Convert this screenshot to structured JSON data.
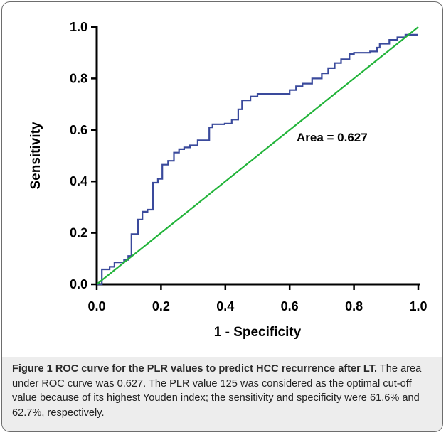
{
  "chart_data": {
    "type": "line",
    "xlabel": "1 - Specificity",
    "ylabel": "Sensitivity",
    "xlim": [
      0,
      1
    ],
    "ylim": [
      0,
      1
    ],
    "x_ticks": [
      "0.0",
      "0.2",
      "0.4",
      "0.6",
      "0.8",
      "1.0"
    ],
    "y_ticks": [
      "0.0",
      "0.2",
      "0.4",
      "0.6",
      "0.8",
      "1.0"
    ],
    "annotation": "Area = 0.627",
    "grid": false,
    "series": [
      {
        "color": "#3a4a9c",
        "points": [
          [
            0,
            0
          ],
          [
            0.016,
            0
          ],
          [
            0.016,
            0.058
          ],
          [
            0.04,
            0.058
          ],
          [
            0.04,
            0.068
          ],
          [
            0.055,
            0.068
          ],
          [
            0.055,
            0.085
          ],
          [
            0.085,
            0.085
          ],
          [
            0.085,
            0.095
          ],
          [
            0.098,
            0.095
          ],
          [
            0.098,
            0.11
          ],
          [
            0.108,
            0.11
          ],
          [
            0.108,
            0.195
          ],
          [
            0.128,
            0.195
          ],
          [
            0.128,
            0.252
          ],
          [
            0.142,
            0.252
          ],
          [
            0.142,
            0.282
          ],
          [
            0.158,
            0.282
          ],
          [
            0.158,
            0.29
          ],
          [
            0.175,
            0.29
          ],
          [
            0.175,
            0.395
          ],
          [
            0.19,
            0.395
          ],
          [
            0.19,
            0.41
          ],
          [
            0.204,
            0.41
          ],
          [
            0.204,
            0.465
          ],
          [
            0.222,
            0.465
          ],
          [
            0.222,
            0.48
          ],
          [
            0.24,
            0.48
          ],
          [
            0.24,
            0.512
          ],
          [
            0.256,
            0.512
          ],
          [
            0.256,
            0.525
          ],
          [
            0.272,
            0.525
          ],
          [
            0.272,
            0.532
          ],
          [
            0.29,
            0.532
          ],
          [
            0.29,
            0.54
          ],
          [
            0.314,
            0.54
          ],
          [
            0.314,
            0.56
          ],
          [
            0.35,
            0.56
          ],
          [
            0.35,
            0.61
          ],
          [
            0.36,
            0.61
          ],
          [
            0.36,
            0.622
          ],
          [
            0.398,
            0.622
          ],
          [
            0.398,
            0.625
          ],
          [
            0.42,
            0.625
          ],
          [
            0.42,
            0.64
          ],
          [
            0.44,
            0.64
          ],
          [
            0.44,
            0.68
          ],
          [
            0.452,
            0.68
          ],
          [
            0.452,
            0.715
          ],
          [
            0.478,
            0.715
          ],
          [
            0.478,
            0.73
          ],
          [
            0.5,
            0.73
          ],
          [
            0.5,
            0.74
          ],
          [
            0.6,
            0.74
          ],
          [
            0.6,
            0.755
          ],
          [
            0.62,
            0.755
          ],
          [
            0.62,
            0.77
          ],
          [
            0.64,
            0.77
          ],
          [
            0.64,
            0.78
          ],
          [
            0.67,
            0.78
          ],
          [
            0.67,
            0.8
          ],
          [
            0.7,
            0.8
          ],
          [
            0.7,
            0.82
          ],
          [
            0.72,
            0.82
          ],
          [
            0.72,
            0.84
          ],
          [
            0.74,
            0.84
          ],
          [
            0.74,
            0.86
          ],
          [
            0.76,
            0.86
          ],
          [
            0.76,
            0.875
          ],
          [
            0.786,
            0.875
          ],
          [
            0.786,
            0.895
          ],
          [
            0.8,
            0.895
          ],
          [
            0.8,
            0.9
          ],
          [
            0.85,
            0.9
          ],
          [
            0.85,
            0.905
          ],
          [
            0.872,
            0.905
          ],
          [
            0.872,
            0.92
          ],
          [
            0.88,
            0.92
          ],
          [
            0.88,
            0.935
          ],
          [
            0.91,
            0.935
          ],
          [
            0.91,
            0.95
          ],
          [
            0.935,
            0.95
          ],
          [
            0.935,
            0.96
          ],
          [
            0.96,
            0.96
          ],
          [
            0.96,
            0.97
          ],
          [
            1.0,
            0.97
          ]
        ]
      },
      {
        "color": "#22b43a",
        "points": [
          [
            0,
            0
          ],
          [
            1,
            1
          ]
        ]
      }
    ]
  },
  "caption": {
    "figure_label": "Figure 1 ROC curve for the PLR values to predict HCC recurrence after LT.",
    "text": " The area under ROC curve was 0.627. The PLR value 125 was considered as the optimal cut-off value because of its highest Youden index; the sensitivity and specificity were 61.6% and 62.7%, respectively."
  }
}
